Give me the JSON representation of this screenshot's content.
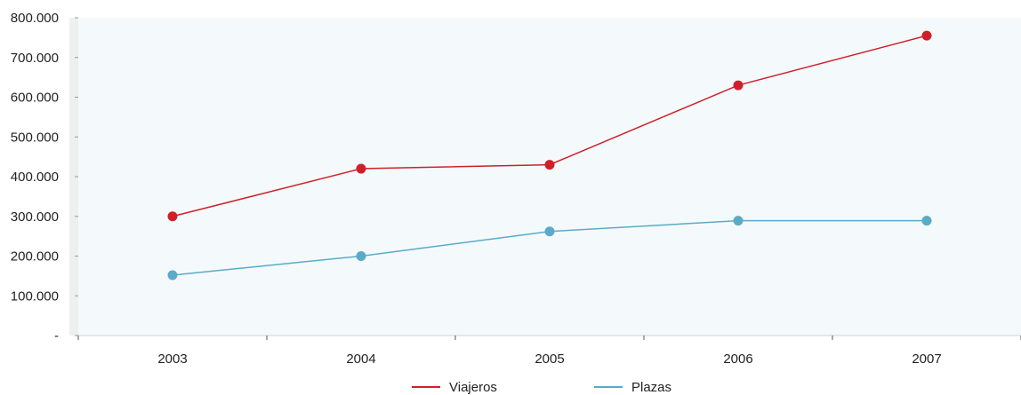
{
  "chart_data": {
    "type": "line",
    "title": "",
    "xlabel": "",
    "ylabel": "",
    "categories": [
      "2003",
      "2004",
      "2005",
      "2006",
      "2007"
    ],
    "y_ticks": [
      {
        "value": 0,
        "label": "-"
      },
      {
        "value": 100000,
        "label": "100.000"
      },
      {
        "value": 200000,
        "label": "200.000"
      },
      {
        "value": 300000,
        "label": "300.000"
      },
      {
        "value": 400000,
        "label": "400.000"
      },
      {
        "value": 500000,
        "label": "500.000"
      },
      {
        "value": 600000,
        "label": "600.000"
      },
      {
        "value": 700000,
        "label": "700.000"
      },
      {
        "value": 800000,
        "label": "800.000"
      }
    ],
    "ylim": [
      0,
      800000
    ],
    "grid": false,
    "legend_position": "bottom",
    "plot_background": "#f4fafc",
    "series": [
      {
        "name": "Viajeros",
        "color": "#d11f2a",
        "values": [
          300000,
          420000,
          430000,
          630000,
          755000
        ]
      },
      {
        "name": "Plazas",
        "color": "#5aaac8",
        "values": [
          152000,
          200000,
          262000,
          289000,
          289000
        ]
      }
    ]
  }
}
